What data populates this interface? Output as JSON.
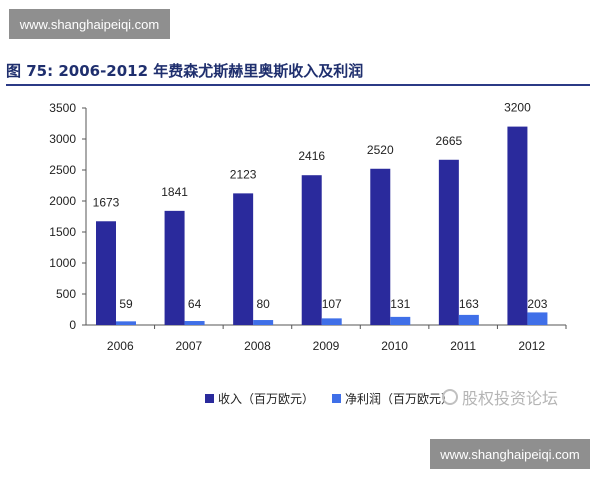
{
  "watermark_text": "www.shanghaipeiqi.com",
  "figure_title": "图 75: 2006-2012 年费森尤斯赫里奥斯收入及利润",
  "brand_text": "股权投资论坛",
  "chart_data": {
    "type": "bar",
    "title": "图 75: 2006-2012 年费森尤斯赫里奥斯收入及利润",
    "xlabel": "",
    "ylabel": "",
    "categories": [
      "2006",
      "2007",
      "2008",
      "2009",
      "2010",
      "2011",
      "2012"
    ],
    "ylim": [
      0,
      3500
    ],
    "yticks": [
      0,
      500,
      1000,
      1500,
      2000,
      2500,
      3000,
      3500
    ],
    "grid": false,
    "legend_position": "bottom",
    "series": [
      {
        "name": "收入（百万欧元）",
        "values": [
          1673,
          1841,
          2123,
          2416,
          2520,
          2665,
          3200
        ],
        "color": "#2a2a9c"
      },
      {
        "name": "净利润（百万欧元）",
        "values": [
          59,
          64,
          80,
          107,
          131,
          163,
          203
        ],
        "color": "#3f6fe8"
      }
    ]
  }
}
